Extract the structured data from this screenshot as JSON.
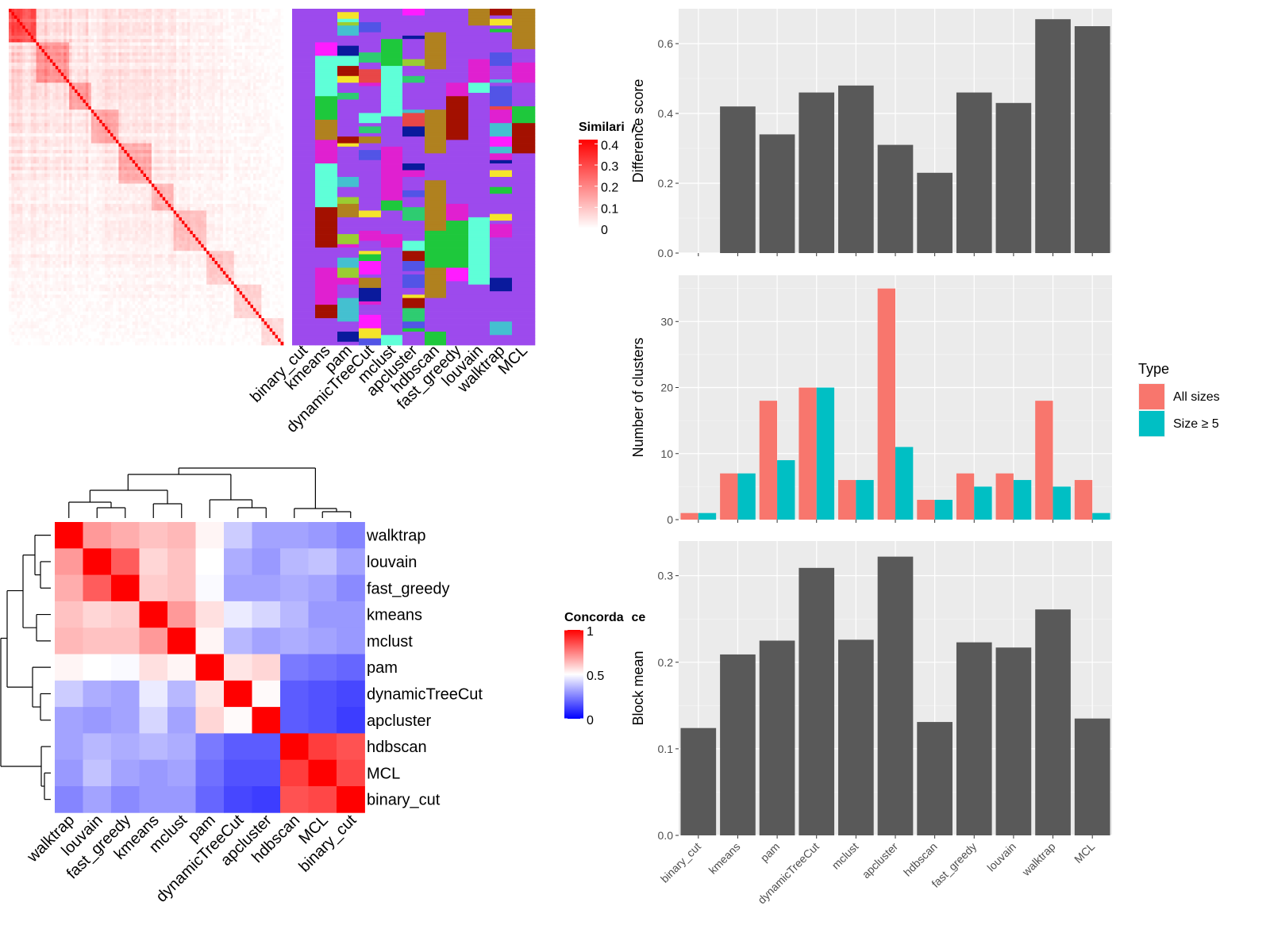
{
  "methods": [
    "binary_cut",
    "kmeans",
    "pam",
    "dynamicTreeCut",
    "mclust",
    "apcluster",
    "hdbscan",
    "fast_greedy",
    "louvain",
    "walktrap",
    "MCL"
  ],
  "similarity_heatmap": {
    "legend_title": "Similarity",
    "legend_ticks": [
      "0.4",
      "0.3",
      "0.2",
      "0.1",
      "0"
    ],
    "legend_values": [
      0.4,
      0.3,
      0.2,
      0.1,
      0
    ],
    "range": [
      0,
      0.42
    ],
    "colors": {
      "low": "#ffffff",
      "high": "#ff0000"
    }
  },
  "cluster_palette": [
    "#9d4aed",
    "#1ec83c",
    "#b0811f",
    "#a31000",
    "#e020d0",
    "#5fffd8",
    "#ff1cff",
    "#e84747",
    "#5254e6",
    "#9acd32",
    "#0a1a9c",
    "#44c0d0",
    "#2ecc71",
    "#f5e42a"
  ],
  "concordance_heatmap": {
    "legend_title": "Concordance",
    "legend_ticks": [
      "1",
      "0.5",
      "0"
    ],
    "legend_values": [
      1,
      0.5,
      0
    ],
    "colors": {
      "low": "#0000ff",
      "mid": "#ffffff",
      "high": "#ff0000"
    },
    "order": [
      "walktrap",
      "louvain",
      "fast_greedy",
      "kmeans",
      "mclust",
      "pam",
      "dynamicTreeCut",
      "apcluster",
      "hdbscan",
      "MCL",
      "binary_cut"
    ],
    "matrix": [
      [
        1.0,
        0.7,
        0.66,
        0.62,
        0.64,
        0.52,
        0.4,
        0.32,
        0.32,
        0.3,
        0.26
      ],
      [
        0.7,
        1.0,
        0.82,
        0.58,
        0.62,
        0.5,
        0.34,
        0.3,
        0.36,
        0.38,
        0.32
      ],
      [
        0.66,
        0.82,
        1.0,
        0.6,
        0.62,
        0.49,
        0.32,
        0.32,
        0.34,
        0.32,
        0.27
      ],
      [
        0.62,
        0.58,
        0.6,
        1.0,
        0.7,
        0.56,
        0.46,
        0.42,
        0.36,
        0.3,
        0.3
      ],
      [
        0.64,
        0.62,
        0.62,
        0.7,
        1.0,
        0.52,
        0.36,
        0.32,
        0.34,
        0.32,
        0.3
      ],
      [
        0.52,
        0.5,
        0.49,
        0.56,
        0.52,
        1.0,
        0.55,
        0.58,
        0.24,
        0.22,
        0.2
      ],
      [
        0.4,
        0.34,
        0.32,
        0.46,
        0.36,
        0.55,
        1.0,
        0.51,
        0.18,
        0.16,
        0.14
      ],
      [
        0.32,
        0.3,
        0.32,
        0.42,
        0.32,
        0.58,
        0.51,
        1.0,
        0.18,
        0.16,
        0.12
      ],
      [
        0.32,
        0.36,
        0.34,
        0.36,
        0.34,
        0.24,
        0.18,
        0.18,
        1.0,
        0.88,
        0.84
      ],
      [
        0.3,
        0.38,
        0.32,
        0.3,
        0.32,
        0.22,
        0.16,
        0.16,
        0.88,
        1.0,
        0.86
      ],
      [
        0.26,
        0.32,
        0.27,
        0.3,
        0.3,
        0.2,
        0.14,
        0.12,
        0.84,
        0.86,
        1.0
      ]
    ]
  },
  "chart_data": [
    {
      "type": "bar",
      "categories": [
        "binary_cut",
        "kmeans",
        "pam",
        "dynamicTreeCut",
        "mclust",
        "apcluster",
        "hdbscan",
        "fast_greedy",
        "louvain",
        "walktrap",
        "MCL"
      ],
      "values": [
        0,
        0.42,
        0.34,
        0.46,
        0.48,
        0.31,
        0.23,
        0.46,
        0.43,
        0.67,
        0.65
      ],
      "ylabel": "Difference score",
      "yticks": [
        0.0,
        0.2,
        0.4,
        0.6
      ],
      "ytick_labels": [
        "0.0",
        "0.2",
        "0.4",
        "0.6"
      ],
      "ylim": [
        0,
        0.7
      ],
      "color": "#595959"
    },
    {
      "type": "bar",
      "categories": [
        "binary_cut",
        "kmeans",
        "pam",
        "dynamicTreeCut",
        "mclust",
        "apcluster",
        "hdbscan",
        "fast_greedy",
        "louvain",
        "walktrap",
        "MCL"
      ],
      "series": [
        {
          "name": "All sizes",
          "values": [
            1,
            7,
            18,
            20,
            6,
            35,
            3,
            7,
            7,
            18,
            6
          ],
          "color": "#f8766d"
        },
        {
          "name": "Size ≥ 5",
          "values": [
            1,
            7,
            9,
            20,
            6,
            11,
            3,
            5,
            6,
            5,
            1
          ],
          "color": "#00bfc4"
        }
      ],
      "ylabel": "Number of clusters",
      "yticks": [
        0,
        10,
        20,
        30
      ],
      "ytick_labels": [
        "0",
        "10",
        "20",
        "30"
      ],
      "ylim": [
        0,
        37
      ],
      "legend_title": "Type",
      "legend_position": "right"
    },
    {
      "type": "bar",
      "categories": [
        "binary_cut",
        "kmeans",
        "pam",
        "dynamicTreeCut",
        "mclust",
        "apcluster",
        "hdbscan",
        "fast_greedy",
        "louvain",
        "walktrap",
        "MCL"
      ],
      "values": [
        0.124,
        0.209,
        0.225,
        0.309,
        0.226,
        0.322,
        0.131,
        0.223,
        0.217,
        0.261,
        0.135
      ],
      "ylabel": "Block mean",
      "yticks": [
        0.0,
        0.1,
        0.2,
        0.3
      ],
      "ytick_labels": [
        "0.0",
        "0.1",
        "0.2",
        "0.3"
      ],
      "ylim": [
        0,
        0.34
      ],
      "color": "#595959"
    }
  ]
}
